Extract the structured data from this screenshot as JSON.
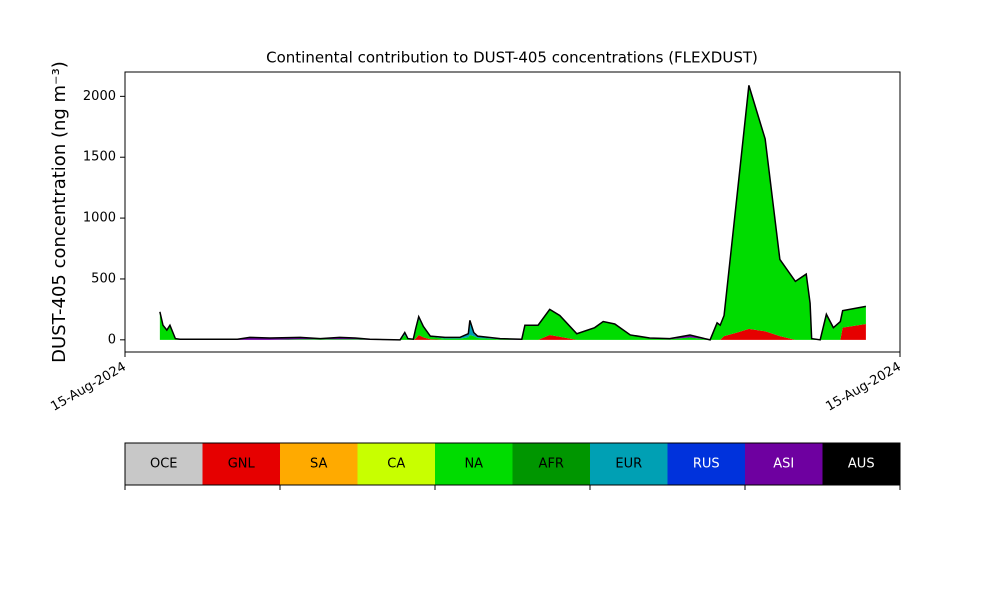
{
  "chart_data": {
    "type": "stacked-area",
    "title": "Continental contribution to DUST-405 concentrations (FLEXDUST)",
    "y_label": "DUST-405 concentration (ng m⁻³)",
    "x": [
      0.045,
      0.049,
      0.054,
      0.058,
      0.065,
      0.071,
      0.145,
      0.161,
      0.187,
      0.226,
      0.252,
      0.277,
      0.297,
      0.316,
      0.355,
      0.361,
      0.365,
      0.372,
      0.375,
      0.379,
      0.385,
      0.394,
      0.413,
      0.432,
      0.443,
      0.445,
      0.45,
      0.455,
      0.484,
      0.512,
      0.516,
      0.533,
      0.548,
      0.561,
      0.583,
      0.606,
      0.617,
      0.632,
      0.652,
      0.677,
      0.703,
      0.729,
      0.748,
      0.755,
      0.764,
      0.768,
      0.773,
      0.79,
      0.805,
      0.826,
      0.845,
      0.865,
      0.879,
      0.884,
      0.886,
      0.897,
      0.905,
      0.914,
      0.923,
      0.926,
      0.956
    ],
    "xlim": [
      0,
      1
    ],
    "xticks": [
      {
        "value": 0,
        "label": "15-Aug-2024"
      },
      {
        "value": 1,
        "label": "15-Aug-2024"
      }
    ],
    "ylim": [
      -100,
      2200
    ],
    "yticks": [
      0,
      500,
      1000,
      1500,
      2000
    ],
    "outline_color": "#000000",
    "series": [
      {
        "name": "OCE",
        "color": "#c8c8c8",
        "values": [
          0,
          0,
          0,
          0,
          0,
          0,
          0,
          0,
          0,
          0,
          0,
          0,
          0,
          0,
          0,
          0,
          0,
          0,
          0,
          0,
          0,
          0,
          0,
          0,
          0,
          0,
          0,
          0,
          0,
          0,
          0,
          0,
          0,
          0,
          0,
          0,
          0,
          0,
          0,
          0,
          0,
          0,
          0,
          0,
          0,
          0,
          0,
          0,
          0,
          0,
          0,
          0,
          0,
          0,
          0,
          0,
          0,
          0,
          0,
          0,
          0
        ]
      },
      {
        "name": "GNL",
        "color": "#e60000",
        "values": [
          0,
          0,
          0,
          0,
          0,
          0,
          0,
          0,
          0,
          0,
          0,
          0,
          0,
          0,
          0,
          0,
          0,
          0,
          10,
          40,
          20,
          5,
          0,
          0,
          0,
          0,
          0,
          0,
          0,
          0,
          0,
          0,
          40,
          25,
          0,
          0,
          0,
          0,
          0,
          0,
          0,
          0,
          0,
          0,
          0,
          0,
          30,
          60,
          90,
          70,
          30,
          0,
          0,
          0,
          0,
          0,
          0,
          0,
          0,
          100,
          130
        ]
      },
      {
        "name": "SA",
        "color": "#ffaa00",
        "values": [
          0,
          0,
          0,
          0,
          0,
          0,
          0,
          0,
          0,
          0,
          0,
          0,
          0,
          0,
          0,
          0,
          0,
          0,
          0,
          0,
          0,
          0,
          0,
          0,
          0,
          0,
          0,
          0,
          0,
          0,
          0,
          0,
          0,
          0,
          0,
          0,
          0,
          0,
          0,
          0,
          0,
          0,
          0,
          0,
          0,
          0,
          0,
          0,
          0,
          0,
          0,
          0,
          0,
          0,
          0,
          0,
          0,
          0,
          0,
          0,
          0
        ]
      },
      {
        "name": "CA",
        "color": "#c8ff00",
        "values": [
          0,
          0,
          0,
          0,
          0,
          0,
          0,
          0,
          0,
          0,
          0,
          0,
          0,
          0,
          0,
          0,
          0,
          0,
          0,
          0,
          0,
          0,
          0,
          0,
          0,
          0,
          0,
          0,
          0,
          0,
          0,
          0,
          0,
          0,
          0,
          0,
          0,
          0,
          0,
          0,
          0,
          0,
          0,
          0,
          0,
          0,
          0,
          0,
          0,
          0,
          0,
          0,
          0,
          0,
          0,
          0,
          0,
          0,
          0,
          0,
          0
        ]
      },
      {
        "name": "NA",
        "color": "#00dc00",
        "values": [
          230,
          120,
          80,
          120,
          10,
          0,
          0,
          0,
          0,
          5,
          5,
          5,
          5,
          0,
          0,
          40,
          5,
          5,
          60,
          130,
          80,
          20,
          10,
          10,
          20,
          40,
          30,
          15,
          5,
          0,
          120,
          120,
          210,
          175,
          50,
          100,
          150,
          130,
          40,
          10,
          5,
          20,
          5,
          0,
          140,
          120,
          170,
          1140,
          2000,
          1580,
          630,
          480,
          540,
          300,
          10,
          0,
          210,
          100,
          150,
          140,
          145
        ]
      },
      {
        "name": "AFR",
        "color": "#009600",
        "values": [
          0,
          0,
          0,
          0,
          0,
          0,
          0,
          0,
          0,
          0,
          0,
          0,
          0,
          0,
          0,
          0,
          0,
          0,
          0,
          0,
          0,
          0,
          0,
          0,
          0,
          0,
          0,
          0,
          0,
          0,
          0,
          0,
          0,
          0,
          0,
          0,
          0,
          0,
          0,
          0,
          0,
          0,
          0,
          0,
          0,
          0,
          0,
          0,
          0,
          0,
          0,
          0,
          0,
          0,
          0,
          0,
          0,
          0,
          0,
          0,
          0
        ]
      },
      {
        "name": "EUR",
        "color": "#00a0b4",
        "values": [
          0,
          0,
          0,
          0,
          0,
          0,
          0,
          0,
          0,
          0,
          0,
          0,
          0,
          0,
          0,
          10,
          0,
          0,
          20,
          20,
          10,
          5,
          5,
          5,
          25,
          110,
          20,
          10,
          0,
          0,
          0,
          0,
          0,
          0,
          0,
          0,
          0,
          0,
          0,
          0,
          0,
          0,
          0,
          0,
          0,
          0,
          0,
          0,
          0,
          0,
          0,
          0,
          0,
          0,
          0,
          0,
          0,
          0,
          0,
          0,
          0
        ]
      },
      {
        "name": "RUS",
        "color": "#0032dc",
        "values": [
          0,
          0,
          0,
          0,
          0,
          0,
          0,
          0,
          0,
          0,
          0,
          0,
          0,
          0,
          0,
          0,
          0,
          0,
          0,
          0,
          0,
          0,
          0,
          0,
          0,
          0,
          0,
          0,
          0,
          0,
          0,
          0,
          0,
          0,
          0,
          0,
          0,
          0,
          0,
          0,
          0,
          0,
          0,
          0,
          0,
          0,
          0,
          0,
          0,
          0,
          0,
          0,
          0,
          0,
          0,
          0,
          0,
          0,
          0,
          0,
          0
        ]
      },
      {
        "name": "ASI",
        "color": "#6e00a0",
        "values": [
          0,
          0,
          0,
          0,
          0,
          5,
          5,
          20,
          15,
          15,
          5,
          15,
          10,
          5,
          0,
          10,
          5,
          0,
          0,
          0,
          0,
          0,
          5,
          5,
          5,
          10,
          10,
          5,
          5,
          5,
          0,
          0,
          0,
          0,
          0,
          0,
          0,
          0,
          0,
          5,
          5,
          20,
          5,
          0,
          0,
          0,
          0,
          0,
          0,
          0,
          0,
          0,
          0,
          0,
          0,
          0,
          0,
          0,
          0,
          0,
          0
        ]
      },
      {
        "name": "AUS",
        "color": "#000000",
        "values": [
          0,
          0,
          0,
          0,
          0,
          0,
          0,
          0,
          0,
          0,
          0,
          0,
          0,
          0,
          0,
          0,
          0,
          0,
          0,
          0,
          0,
          0,
          0,
          0,
          0,
          0,
          0,
          0,
          0,
          0,
          0,
          0,
          0,
          0,
          0,
          0,
          0,
          0,
          0,
          0,
          0,
          0,
          0,
          0,
          0,
          0,
          0,
          0,
          0,
          0,
          0,
          0,
          0,
          0,
          0,
          0,
          0,
          0,
          0,
          0,
          0
        ]
      }
    ]
  }
}
